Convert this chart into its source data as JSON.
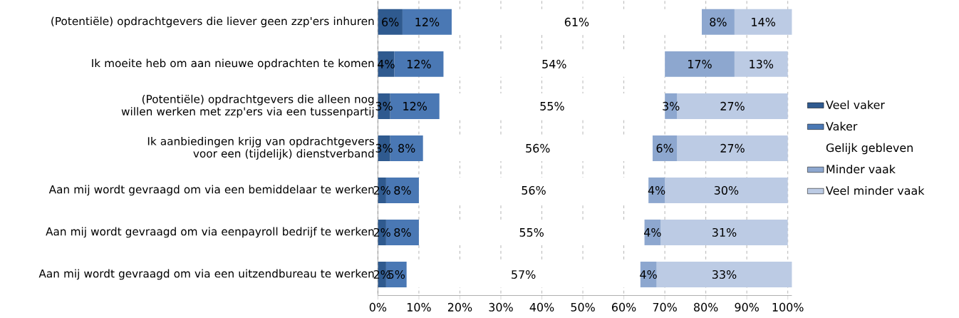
{
  "chart_data": {
    "type": "bar",
    "orientation": "horizontal",
    "stacked": true,
    "categories": [
      "(Potentiële) opdrachtgevers die liever geen zzp'ers inhuren",
      "Ik moeite heb om aan nieuwe opdrachten te komen",
      "(Potentiële) opdrachtgevers die alleen nog willen werken met zzp'ers via een tussenpartij",
      "Ik aanbiedingen krijg van opdrachtgevers voor een (tijdelijk) dienstverband",
      "Aan mij wordt gevraagd om via een bemiddelaar te werken",
      "Aan mij wordt gevraagd om via eenpayroll bedrijf te werken",
      "Aan mij wordt gevraagd om via een uitzendbureau te werken"
    ],
    "series": [
      {
        "name": "Veel vaker",
        "color": "#2f5a8f",
        "values": [
          6,
          4,
          3,
          3,
          2,
          2,
          2
        ],
        "value_labels": [
          "6%",
          "4%",
          "3%",
          "3%",
          "2%",
          "2%",
          "2%"
        ]
      },
      {
        "name": "Vaker",
        "color": "#4a78b4",
        "values": [
          12,
          12,
          12,
          8,
          8,
          8,
          5
        ],
        "value_labels": [
          "12%",
          "12%",
          "12%",
          "8%",
          "8%",
          "8%",
          "5%"
        ]
      },
      {
        "name": "Gelijk gebleven",
        "color": "#ffffff",
        "values": [
          61,
          54,
          55,
          56,
          56,
          55,
          57
        ],
        "value_labels": [
          "61%",
          "54%",
          "55%",
          "56%",
          "56%",
          "55%",
          "57%"
        ]
      },
      {
        "name": "Minder vaak",
        "color": "#8da7cf",
        "values": [
          8,
          17,
          3,
          6,
          4,
          4,
          4
        ],
        "value_labels": [
          "8%",
          "17%",
          "3%",
          "6%",
          "4%",
          "4%",
          "4%"
        ]
      },
      {
        "name": "Veel minder vaak",
        "color": "#bccbe4",
        "values": [
          14,
          13,
          27,
          27,
          30,
          31,
          33
        ],
        "value_labels": [
          "14%",
          "13%",
          "27%",
          "27%",
          "30%",
          "31%",
          "33%"
        ]
      }
    ],
    "xlim": [
      0,
      101
    ],
    "xticks": [
      {
        "value": 0,
        "label": "0%"
      },
      {
        "value": 10,
        "label": "10%"
      },
      {
        "value": 20,
        "label": "20%"
      },
      {
        "value": 30,
        "label": "30%"
      },
      {
        "value": 40,
        "label": "40%"
      },
      {
        "value": 50,
        "label": "50%"
      },
      {
        "value": 60,
        "label": "60%"
      },
      {
        "value": 70,
        "label": "70%"
      },
      {
        "value": 80,
        "label": "80%"
      },
      {
        "value": 90,
        "label": "90%"
      },
      {
        "value": 100,
        "label": "100%"
      }
    ],
    "grid": "x",
    "legend": "right"
  }
}
